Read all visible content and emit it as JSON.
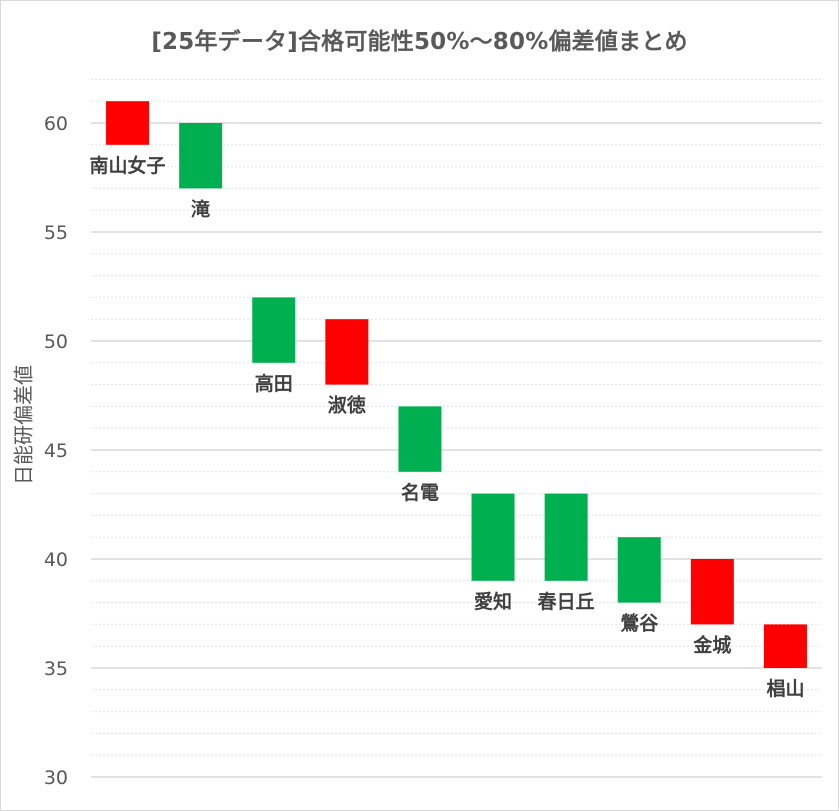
{
  "chart_data": {
    "type": "bar",
    "title": "[25年データ]合格可能性50%〜80%偏差値まとめ",
    "ylabel": "日能研偏差値",
    "xlabel": "",
    "ylim": [
      30,
      62
    ],
    "yticks": [
      30,
      35,
      40,
      45,
      50,
      55,
      60
    ],
    "grid": true,
    "colors": {
      "red": "#ff0000",
      "green": "#00b050"
    },
    "bars": [
      {
        "name": "南山女子",
        "low": 59,
        "high": 61,
        "color": "red"
      },
      {
        "name": "滝",
        "low": 57,
        "high": 60,
        "color": "green"
      },
      {
        "name": "高田",
        "low": 49,
        "high": 52,
        "color": "green"
      },
      {
        "name": "淑徳",
        "low": 48,
        "high": 51,
        "color": "red"
      },
      {
        "name": "名電",
        "low": 44,
        "high": 47,
        "color": "green"
      },
      {
        "name": "愛知",
        "low": 39,
        "high": 43,
        "color": "green"
      },
      {
        "name": "春日丘",
        "low": 39,
        "high": 43,
        "color": "green"
      },
      {
        "name": "鶯谷",
        "low": 38,
        "high": 41,
        "color": "green"
      },
      {
        "name": "金城",
        "low": 37,
        "high": 40,
        "color": "red"
      },
      {
        "name": "椙山",
        "low": 35,
        "high": 37,
        "color": "red"
      }
    ]
  }
}
